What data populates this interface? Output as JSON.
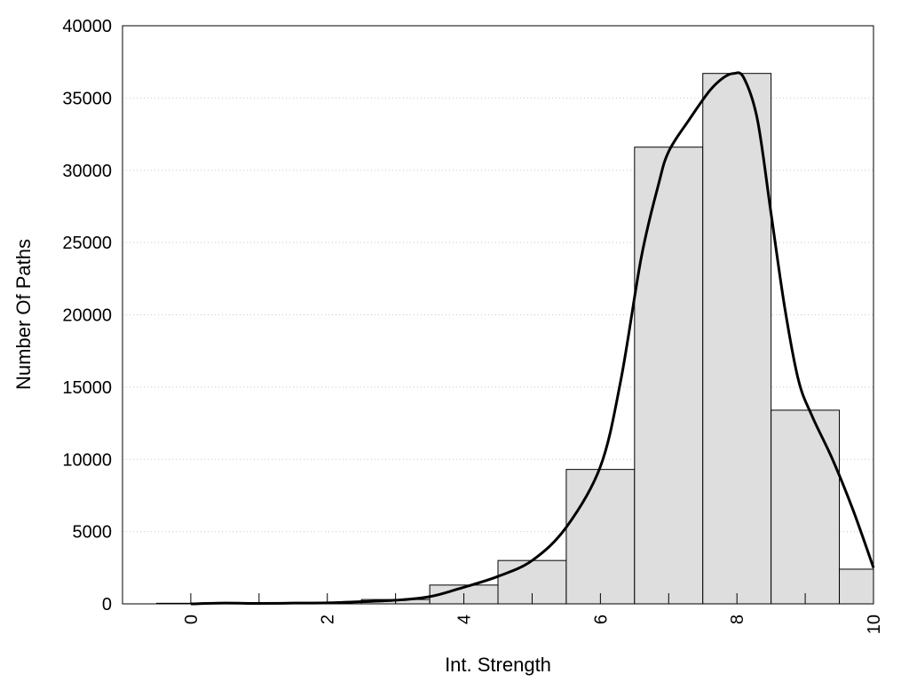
{
  "chart_data": {
    "type": "bar",
    "title": "",
    "xlabel": "Int. Strength",
    "ylabel": "Number Of Paths",
    "xlim": [
      -1,
      10
    ],
    "ylim": [
      0,
      40000
    ],
    "x_ticks": [
      "0",
      "2",
      "4",
      "6",
      "8",
      "10"
    ],
    "y_ticks": [
      "0",
      "5000",
      "10000",
      "15000",
      "20000",
      "25000",
      "30000",
      "35000",
      "40000"
    ],
    "grid": "horizontal dotted",
    "legend": "none",
    "bar_color": "#dedede",
    "line_color": "#000000",
    "bins": [
      {
        "x0": -0.5,
        "x1": 0.5,
        "value": 40
      },
      {
        "x0": 0.5,
        "x1": 1.5,
        "value": 60
      },
      {
        "x0": 1.5,
        "x1": 2.5,
        "value": 100
      },
      {
        "x0": 2.5,
        "x1": 3.5,
        "value": 300
      },
      {
        "x0": 3.5,
        "x1": 4.5,
        "value": 1300
      },
      {
        "x0": 4.5,
        "x1": 5.5,
        "value": 3000
      },
      {
        "x0": 5.5,
        "x1": 6.5,
        "value": 9300
      },
      {
        "x0": 6.5,
        "x1": 7.5,
        "value": 31600
      },
      {
        "x0": 7.5,
        "x1": 8.5,
        "value": 36700
      },
      {
        "x0": 8.5,
        "x1": 9.5,
        "value": 13400
      },
      {
        "x0": 9.5,
        "x1": 10,
        "value": 2400
      }
    ],
    "density_curve": [
      [
        0,
        0
      ],
      [
        0.5,
        50
      ],
      [
        1,
        30
      ],
      [
        1.5,
        50
      ],
      [
        2,
        70
      ],
      [
        2.5,
        150
      ],
      [
        3,
        250
      ],
      [
        3.5,
        500
      ],
      [
        4,
        1150
      ],
      [
        4.5,
        1900
      ],
      [
        5,
        3000
      ],
      [
        5.5,
        5300
      ],
      [
        6,
        9500
      ],
      [
        6.3,
        15500
      ],
      [
        6.6,
        24000
      ],
      [
        6.85,
        29000
      ],
      [
        7,
        31300
      ],
      [
        7.3,
        33500
      ],
      [
        7.6,
        35500
      ],
      [
        7.8,
        36400
      ],
      [
        7.95,
        36700
      ],
      [
        8.1,
        36400
      ],
      [
        8.3,
        33500
      ],
      [
        8.5,
        27000
      ],
      [
        8.7,
        20500
      ],
      [
        8.9,
        15500
      ],
      [
        9.1,
        13000
      ],
      [
        9.4,
        10000
      ],
      [
        9.7,
        6500
      ],
      [
        10,
        2500
      ]
    ]
  }
}
